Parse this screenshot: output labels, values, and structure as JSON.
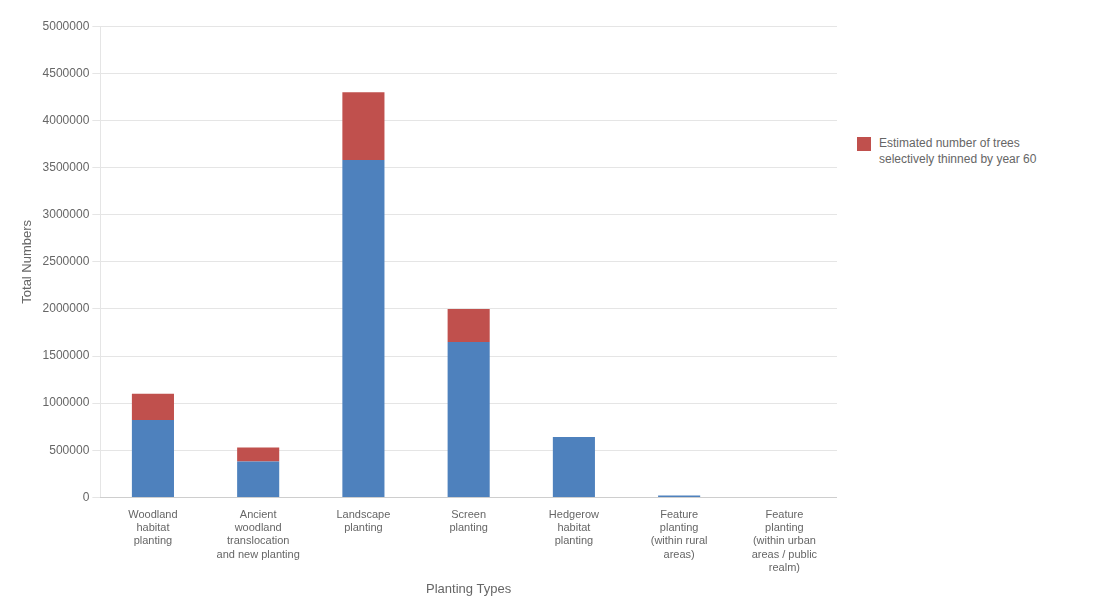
{
  "chart_data": {
    "type": "bar",
    "stacked": true,
    "categories": [
      "Woodland\nhabitat\nplanting",
      "Ancient\nwoodland\ntranslocation\nand new planting",
      "Landscape\nplanting",
      "Screen\nplanting",
      "Hedgerow\nhabitat\nplanting",
      "Feature\nplanting\n(within rural\nareas)",
      "Feature\nplanting\n(within urban\nareas / public\nrealm)"
    ],
    "series": [
      {
        "color": "#4E81BD",
        "values": [
          820000,
          380000,
          3580000,
          1650000,
          640000,
          20000,
          5000
        ]
      },
      {
        "name": "Estimated number of trees\nselectively thinned by year 60",
        "color": "#C0504D",
        "values": [
          280000,
          150000,
          720000,
          350000,
          0,
          0,
          0
        ]
      }
    ],
    "xlabel": "Planting Types",
    "ylabel": "Total Numbers",
    "ylim": [
      0,
      5000000
    ],
    "yticks": [
      0,
      500000,
      1000000,
      1500000,
      2000000,
      2500000,
      3000000,
      3500000,
      4000000,
      4500000,
      5000000
    ],
    "grid": true,
    "legend": "right"
  }
}
